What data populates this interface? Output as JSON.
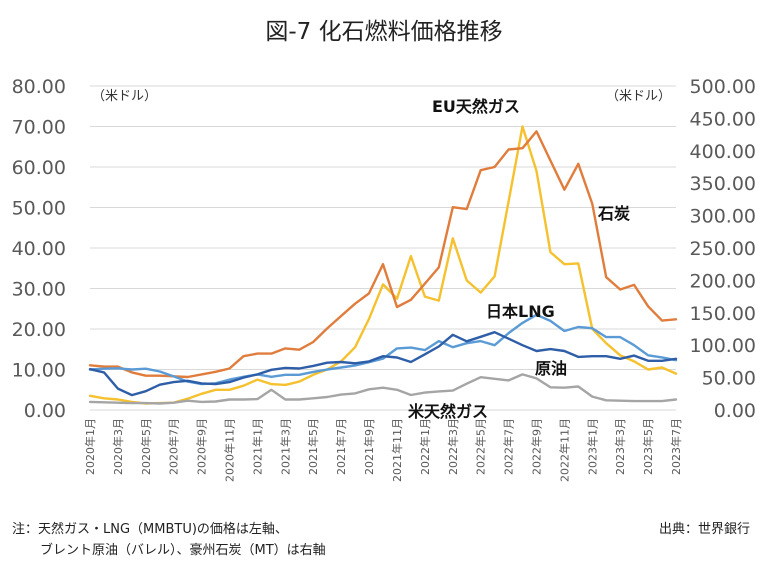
{
  "chart_data": {
    "type": "line",
    "title": "図-7 化石燃料価格推移",
    "y_left_unit": "（米ドル）",
    "y_right_unit": "（米ドル）",
    "y_left_range": [
      0,
      80
    ],
    "y_right_range": [
      0,
      500
    ],
    "y_left_ticks": [
      "0.00",
      "10.00",
      "20.00",
      "30.00",
      "40.00",
      "50.00",
      "60.00",
      "70.00",
      "80.00"
    ],
    "y_right_ticks": [
      "0.00",
      "50.00",
      "100.00",
      "150.00",
      "200.00",
      "250.00",
      "300.00",
      "350.00",
      "400.00",
      "450.00",
      "500.00"
    ],
    "grid": true,
    "x": [
      "2020年1月",
      "2020年2月",
      "2020年3月",
      "2020年4月",
      "2020年5月",
      "2020年6月",
      "2020年7月",
      "2020年8月",
      "2020年9月",
      "2020年10月",
      "2020年11月",
      "2020年12月",
      "2021年1月",
      "2021年2月",
      "2021年3月",
      "2021年4月",
      "2021年5月",
      "2021年6月",
      "2021年7月",
      "2021年8月",
      "2021年9月",
      "2021年10月",
      "2021年11月",
      "2021年12月",
      "2022年1月",
      "2022年2月",
      "2022年3月",
      "2022年4月",
      "2022年5月",
      "2022年6月",
      "2022年7月",
      "2022年8月",
      "2022年9月",
      "2022年10月",
      "2022年11月",
      "2022年12月",
      "2023年1月",
      "2023年2月",
      "2023年3月",
      "2023年4月",
      "2023年5月",
      "2023年6月",
      "2023年7月"
    ],
    "x_tick_labels": [
      "2020年1月",
      "2020年3月",
      "2020年5月",
      "2020年7月",
      "2020年9月",
      "2020年11月",
      "2021年1月",
      "2021年3月",
      "2021年5月",
      "2021年7月",
      "2021年9月",
      "2021年11月",
      "2022年1月",
      "2022年3月",
      "2022年5月",
      "2022年7月",
      "2022年9月",
      "2022年11月",
      "2023年1月",
      "2023年3月",
      "2023年5月",
      "2023年7月"
    ],
    "series": [
      {
        "name": "EU天然ガス",
        "axis": "left",
        "color": "#f5c12e",
        "values": [
          3.5,
          2.9,
          2.6,
          2.0,
          1.6,
          1.7,
          1.8,
          2.8,
          4.0,
          5.0,
          5.0,
          6.0,
          7.5,
          6.4,
          6.2,
          7.0,
          8.7,
          10.0,
          12.0,
          15.5,
          22.5,
          31.0,
          27.5,
          38.0,
          28.0,
          27.0,
          42.4,
          32.0,
          29.0,
          33.0,
          51.5,
          70.0,
          59.0,
          39.0,
          36.0,
          36.2,
          20.0,
          16.5,
          13.5,
          12.0,
          10.0,
          10.5,
          9.0
        ]
      },
      {
        "name": "石炭",
        "axis": "right",
        "color": "#e07d3c",
        "values": [
          69,
          67,
          67,
          58,
          53,
          53,
          52,
          51,
          55,
          59,
          64,
          83,
          87,
          87,
          95,
          93,
          105,
          126,
          145,
          164,
          180,
          225,
          159,
          170,
          195,
          220,
          313,
          310,
          370,
          375,
          402,
          404,
          430,
          385,
          340,
          380,
          318,
          205,
          186,
          193,
          160,
          138,
          140
        ]
      },
      {
        "name": "日本LNG",
        "axis": "left",
        "color": "#5b9bd5",
        "values": [
          10.0,
          10.2,
          10.3,
          10.0,
          10.2,
          9.5,
          8.3,
          7.0,
          6.4,
          6.6,
          7.5,
          8.2,
          8.8,
          8.2,
          8.7,
          8.7,
          9.4,
          10.0,
          10.5,
          11.0,
          11.8,
          12.7,
          15.2,
          15.4,
          14.8,
          17.0,
          15.5,
          16.5,
          17.0,
          16.0,
          19.0,
          21.5,
          23.5,
          22.0,
          19.5,
          20.5,
          20.2,
          18.0,
          18.0,
          16.0,
          13.5,
          13.0,
          12.3
        ]
      },
      {
        "name": "原油",
        "axis": "right",
        "color": "#2e5ea8",
        "values": [
          63,
          58,
          33,
          23,
          29,
          39,
          43,
          45,
          41,
          40,
          43,
          50,
          55,
          62,
          65,
          64,
          68,
          73,
          74,
          72,
          75,
          83,
          81,
          74,
          86,
          98,
          116,
          106,
          113,
          120,
          110,
          100,
          91,
          94,
          91,
          82,
          83,
          83,
          79,
          84,
          76,
          76,
          79
        ]
      },
      {
        "name": "米天然ガス",
        "axis": "left",
        "color": "#a5a5a5",
        "values": [
          2.0,
          1.9,
          1.8,
          1.7,
          1.7,
          1.6,
          1.8,
          2.3,
          2.0,
          2.1,
          2.6,
          2.6,
          2.7,
          5.0,
          2.6,
          2.6,
          2.9,
          3.2,
          3.8,
          4.1,
          5.1,
          5.5,
          5.0,
          3.7,
          4.3,
          4.6,
          4.8,
          6.5,
          8.1,
          7.7,
          7.3,
          8.8,
          7.8,
          5.6,
          5.5,
          5.8,
          3.3,
          2.4,
          2.3,
          2.2,
          2.2,
          2.2,
          2.6
        ]
      }
    ]
  },
  "notes": {
    "line1": "注：天然ガス・LNG（MMBTU)の価格は左軸、",
    "line2": "ブレント原油（バレル）、豪州石炭（MT）は右軸",
    "source": "出典：世界銀行"
  }
}
